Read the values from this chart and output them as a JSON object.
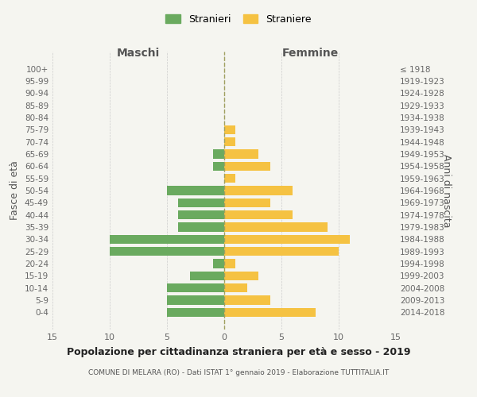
{
  "age_groups": [
    "100+",
    "95-99",
    "90-94",
    "85-89",
    "80-84",
    "75-79",
    "70-74",
    "65-69",
    "60-64",
    "55-59",
    "50-54",
    "45-49",
    "40-44",
    "35-39",
    "30-34",
    "25-29",
    "20-24",
    "15-19",
    "10-14",
    "5-9",
    "0-4"
  ],
  "birth_years": [
    "≤ 1918",
    "1919-1923",
    "1924-1928",
    "1929-1933",
    "1934-1938",
    "1939-1943",
    "1944-1948",
    "1949-1953",
    "1954-1958",
    "1959-1963",
    "1964-1968",
    "1969-1973",
    "1974-1978",
    "1979-1983",
    "1984-1988",
    "1989-1993",
    "1994-1998",
    "1999-2003",
    "2004-2008",
    "2009-2013",
    "2014-2018"
  ],
  "males": [
    0,
    0,
    0,
    0,
    0,
    0,
    0,
    1,
    1,
    0,
    5,
    4,
    4,
    4,
    10,
    10,
    1,
    3,
    5,
    5,
    5
  ],
  "females": [
    0,
    0,
    0,
    0,
    0,
    1,
    1,
    3,
    4,
    1,
    6,
    4,
    6,
    9,
    11,
    10,
    1,
    3,
    2,
    4,
    8
  ],
  "male_color": "#6aaa5f",
  "female_color": "#f5c242",
  "background_color": "#f5f5f0",
  "grid_color": "#cccccc",
  "title": "Popolazione per cittadinanza straniera per età e sesso - 2019",
  "subtitle": "COMUNE DI MELARA (RO) - Dati ISTAT 1° gennaio 2019 - Elaborazione TUTTITALIA.IT",
  "xlabel_left": "Maschi",
  "xlabel_right": "Femmine",
  "ylabel_left": "Fasce di età",
  "ylabel_right": "Anni di nascita",
  "xlim": 15,
  "legend_stranieri": "Stranieri",
  "legend_straniere": "Straniere",
  "dashed_line_color": "#a0a060"
}
